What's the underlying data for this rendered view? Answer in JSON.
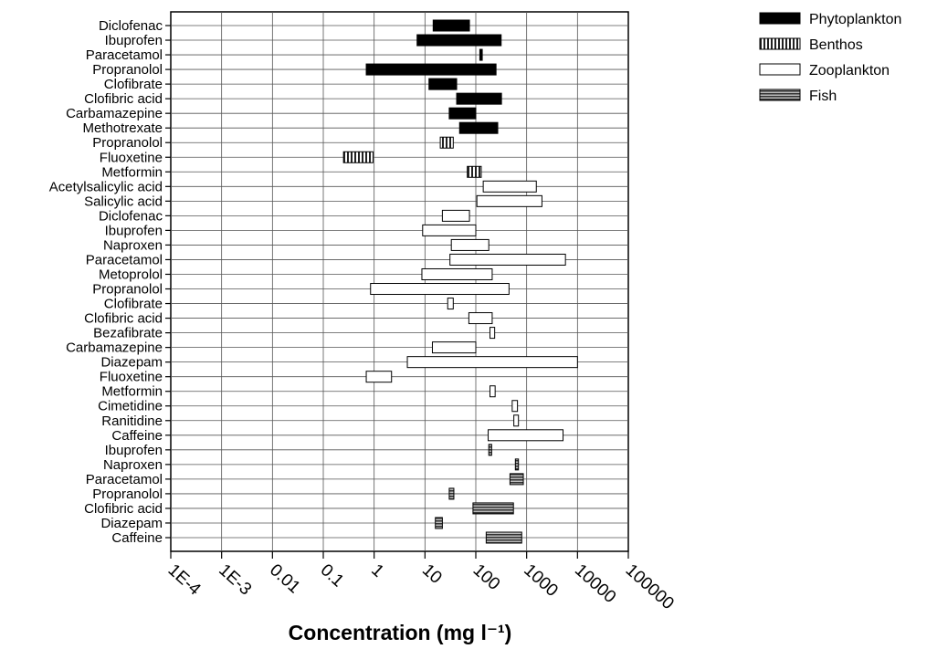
{
  "chart_data": {
    "type": "bar",
    "orientation": "horizontal",
    "subtype": "floating-range",
    "xscale": "log",
    "xlim": [
      0.0001,
      100000
    ],
    "xticks": [
      "1E-4",
      "1E-3",
      "0.01",
      "0.1",
      "1",
      "10",
      "100",
      "1000",
      "10000",
      "100000"
    ],
    "xlabel": "Concentration (mg l⁻¹)",
    "grid": true,
    "legend_position": "top-right",
    "series": [
      {
        "name": "Phytoplankton",
        "color": "#000000",
        "pattern": "solid"
      },
      {
        "name": "Benthos",
        "color": "#555555",
        "pattern": "vertical-stripes"
      },
      {
        "name": "Zooplankton",
        "color": "#ffffff",
        "pattern": "open"
      },
      {
        "name": "Fish",
        "color": "#777777",
        "pattern": "horizontal-stripes"
      }
    ],
    "categories": [
      {
        "label": "Diclofenac",
        "series": "Phytoplankton",
        "range": [
          14.5,
          75
        ]
      },
      {
        "label": "Ibuprofen",
        "series": "Phytoplankton",
        "range": [
          7,
          315
        ]
      },
      {
        "label": "Paracetamol",
        "series": "Phytoplankton",
        "range": [
          120,
          134
        ]
      },
      {
        "label": "Propranolol",
        "series": "Phytoplankton",
        "range": [
          0.7,
          250
        ]
      },
      {
        "label": "Clofibrate",
        "series": "Phytoplankton",
        "range": [
          12,
          42
        ]
      },
      {
        "label": "Clofibric acid",
        "series": "Phytoplankton",
        "range": [
          42,
          320
        ]
      },
      {
        "label": "Carbamazepine",
        "series": "Phytoplankton",
        "range": [
          30,
          100
        ]
      },
      {
        "label": "Methotrexate",
        "series": "Phytoplankton",
        "range": [
          48,
          270
        ]
      },
      {
        "label": "Propranolol",
        "series": "Benthos",
        "range": [
          20,
          36
        ]
      },
      {
        "label": "Fluoxetine",
        "series": "Benthos",
        "range": [
          0.25,
          0.95
        ]
      },
      {
        "label": "Metformin",
        "series": "Benthos",
        "range": [
          68,
          128
        ]
      },
      {
        "label": "Acetylsalicylic acid",
        "series": "Zooplankton",
        "range": [
          140,
          1550
        ]
      },
      {
        "label": "Salicylic acid",
        "series": "Zooplankton",
        "range": [
          105,
          2000
        ]
      },
      {
        "label": "Diclofenac",
        "series": "Zooplankton",
        "range": [
          22,
          75
        ]
      },
      {
        "label": "Ibuprofen",
        "series": "Zooplankton",
        "range": [
          9,
          100
        ]
      },
      {
        "label": "Naproxen",
        "series": "Zooplankton",
        "range": [
          33,
          180
        ]
      },
      {
        "label": "Paracetamol",
        "series": "Zooplankton",
        "range": [
          31,
          5800
        ]
      },
      {
        "label": "Metoprolol",
        "series": "Zooplankton",
        "range": [
          8.7,
          210
        ]
      },
      {
        "label": "Propranolol",
        "series": "Zooplankton",
        "range": [
          0.85,
          450
        ]
      },
      {
        "label": "Clofibrate",
        "series": "Zooplankton",
        "range": [
          28,
          36
        ]
      },
      {
        "label": "Clofibric acid",
        "series": "Zooplankton",
        "range": [
          73,
          210
        ]
      },
      {
        "label": "Bezafibrate",
        "series": "Zooplankton",
        "range": [
          190,
          235
        ]
      },
      {
        "label": "Carbamazepine",
        "series": "Zooplankton",
        "range": [
          14,
          100
        ]
      },
      {
        "label": "Diazepam",
        "series": "Zooplankton",
        "range": [
          4.5,
          10000
        ]
      },
      {
        "label": "Fluoxetine",
        "series": "Zooplankton",
        "range": [
          0.7,
          2.2
        ]
      },
      {
        "label": "Metformin",
        "series": "Zooplankton",
        "range": [
          190,
          240
        ]
      },
      {
        "label": "Cimetidine",
        "series": "Zooplankton",
        "range": [
          520,
          660
        ]
      },
      {
        "label": "Ranitidine",
        "series": "Zooplankton",
        "range": [
          560,
          690
        ]
      },
      {
        "label": "Caffeine",
        "series": "Zooplankton",
        "range": [
          175,
          5200
        ]
      },
      {
        "label": "Ibuprofen",
        "series": "Fish",
        "range": [
          180,
          205
        ]
      },
      {
        "label": "Naproxen",
        "series": "Fish",
        "range": [
          600,
          690
        ]
      },
      {
        "label": "Paracetamol",
        "series": "Fish",
        "range": [
          470,
          860
        ]
      },
      {
        "label": "Propranolol",
        "series": "Fish",
        "range": [
          30,
          37
        ]
      },
      {
        "label": "Clofibric acid",
        "series": "Fish",
        "range": [
          88,
          550
        ]
      },
      {
        "label": "Diazepam",
        "series": "Fish",
        "range": [
          16,
          22
        ]
      },
      {
        "label": "Caffeine",
        "series": "Fish",
        "range": [
          160,
          800
        ]
      }
    ]
  }
}
